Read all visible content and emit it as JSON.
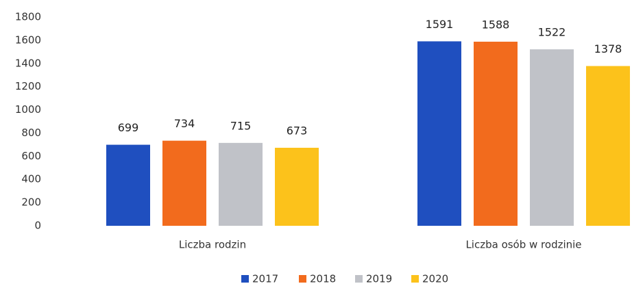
{
  "chart_data": {
    "type": "bar",
    "categories": [
      "Liczba rodzin",
      "Liczba osób w rodzinie"
    ],
    "series": [
      {
        "name": "2017",
        "color": "#1f4fbf",
        "values": [
          699,
          1591
        ]
      },
      {
        "name": "2018",
        "color": "#f26b1d",
        "values": [
          734,
          1588
        ]
      },
      {
        "name": "2019",
        "color": "#c0c2c8",
        "values": [
          715,
          1522
        ]
      },
      {
        "name": "2020",
        "color": "#fcc21b",
        "values": [
          673,
          1378
        ]
      }
    ],
    "ylim": [
      0,
      1800
    ],
    "yticks": [
      0,
      200,
      400,
      600,
      800,
      1000,
      1200,
      1400,
      1600,
      1800
    ],
    "grid": false,
    "legend": "bottom"
  }
}
